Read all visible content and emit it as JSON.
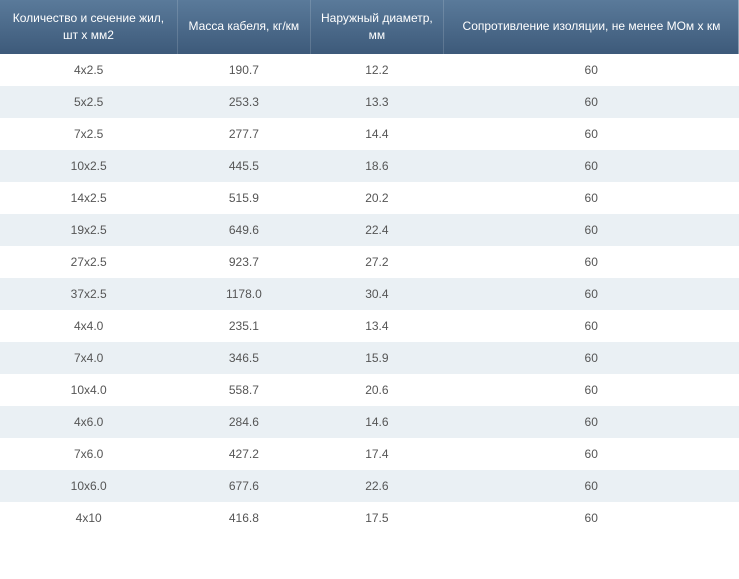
{
  "table": {
    "header_bg_gradient_top": "#5a7a9a",
    "header_bg_gradient_bottom": "#3d5a7a",
    "header_text_color": "#ffffff",
    "row_odd_bg": "#ffffff",
    "row_even_bg": "#eaf0f4",
    "cell_text_color": "#555555",
    "header_fontsize": 12,
    "cell_fontsize": 12,
    "columns": [
      {
        "label": "Количество и сечение жил, шт х мм2",
        "width_pct": 24
      },
      {
        "label": "Масса кабеля, кг/км",
        "width_pct": 18
      },
      {
        "label": "Наружный диаметр, мм",
        "width_pct": 18
      },
      {
        "label": "Сопротивление изоляции, не менее МОм х км",
        "width_pct": 40
      }
    ],
    "rows": [
      [
        "4х2.5",
        "190.7",
        "12.2",
        "60"
      ],
      [
        "5х2.5",
        "253.3",
        "13.3",
        "60"
      ],
      [
        "7х2.5",
        "277.7",
        "14.4",
        "60"
      ],
      [
        "10х2.5",
        "445.5",
        "18.6",
        "60"
      ],
      [
        "14х2.5",
        "515.9",
        "20.2",
        "60"
      ],
      [
        "19х2.5",
        "649.6",
        "22.4",
        "60"
      ],
      [
        "27х2.5",
        "923.7",
        "27.2",
        "60"
      ],
      [
        "37х2.5",
        "1178.0",
        "30.4",
        "60"
      ],
      [
        "4х4.0",
        "235.1",
        "13.4",
        "60"
      ],
      [
        "7х4.0",
        "346.5",
        "15.9",
        "60"
      ],
      [
        "10х4.0",
        "558.7",
        "20.6",
        "60"
      ],
      [
        "4х6.0",
        "284.6",
        "14.6",
        "60"
      ],
      [
        "7х6.0",
        "427.2",
        "17.4",
        "60"
      ],
      [
        "10х6.0",
        "677.6",
        "22.6",
        "60"
      ],
      [
        "4х10",
        "416.8",
        "17.5",
        "60"
      ]
    ]
  }
}
